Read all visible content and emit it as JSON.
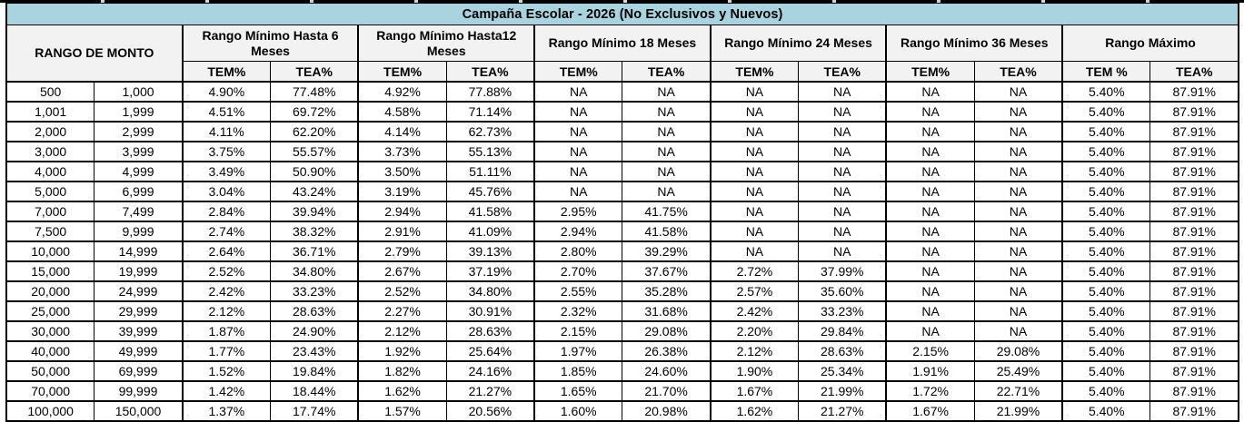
{
  "title": "Campaña Escolar - 2026 (No Exclusivos y Nuevos)",
  "colors": {
    "title_bg": "#a8d3df",
    "header_bg": "#f2f2f2",
    "border": "#000000"
  },
  "table": {
    "col_group_headers": [
      {
        "label": "RANGO DE MONTO"
      },
      {
        "label": "Rango Mínimo Hasta 6 Meses"
      },
      {
        "label": "Rango Mínimo Hasta12 Meses"
      },
      {
        "label": "Rango Mínimo 18 Meses"
      },
      {
        "label": "Rango Mínimo 24 Meses"
      },
      {
        "label": "Rango Mínimo 36 Meses"
      },
      {
        "label": "Rango Máximo"
      }
    ],
    "sub_headers": [
      "TEM%",
      "TEA%",
      "TEM%",
      "TEA%",
      "TEM%",
      "TEA%",
      "TEM%",
      "TEA%",
      "TEM%",
      "TEA%",
      "TEM %",
      "TEA%"
    ],
    "rows": [
      [
        "500",
        "1,000",
        "4.90%",
        "77.48%",
        "4.92%",
        "77.88%",
        "NA",
        "NA",
        "NA",
        "NA",
        "NA",
        "NA",
        "5.40%",
        "87.91%"
      ],
      [
        "1,001",
        "1,999",
        "4.51%",
        "69.72%",
        "4.58%",
        "71.14%",
        "NA",
        "NA",
        "NA",
        "NA",
        "NA",
        "NA",
        "5.40%",
        "87.91%"
      ],
      [
        "2,000",
        "2,999",
        "4.11%",
        "62.20%",
        "4.14%",
        "62.73%",
        "NA",
        "NA",
        "NA",
        "NA",
        "NA",
        "NA",
        "5.40%",
        "87.91%"
      ],
      [
        "3,000",
        "3,999",
        "3.75%",
        "55.57%",
        "3.73%",
        "55.13%",
        "NA",
        "NA",
        "NA",
        "NA",
        "NA",
        "NA",
        "5.40%",
        "87.91%"
      ],
      [
        "4,000",
        "4,999",
        "3.49%",
        "50.90%",
        "3.50%",
        "51.11%",
        "NA",
        "NA",
        "NA",
        "NA",
        "NA",
        "NA",
        "5.40%",
        "87.91%"
      ],
      [
        "5,000",
        "6,999",
        "3.04%",
        "43.24%",
        "3.19%",
        "45.76%",
        "NA",
        "NA",
        "NA",
        "NA",
        "NA",
        "NA",
        "5.40%",
        "87.91%"
      ],
      [
        "7,000",
        "7,499",
        "2.84%",
        "39.94%",
        "2.94%",
        "41.58%",
        "2.95%",
        "41.75%",
        "NA",
        "NA",
        "NA",
        "NA",
        "5.40%",
        "87.91%"
      ],
      [
        "7,500",
        "9,999",
        "2.74%",
        "38.32%",
        "2.91%",
        "41.09%",
        "2.94%",
        "41.58%",
        "NA",
        "NA",
        "NA",
        "NA",
        "5.40%",
        "87.91%"
      ],
      [
        "10,000",
        "14,999",
        "2.64%",
        "36.71%",
        "2.79%",
        "39.13%",
        "2.80%",
        "39.29%",
        "NA",
        "NA",
        "NA",
        "NA",
        "5.40%",
        "87.91%"
      ],
      [
        "15,000",
        "19,999",
        "2.52%",
        "34.80%",
        "2.67%",
        "37.19%",
        "2.70%",
        "37.67%",
        "2.72%",
        "37.99%",
        "NA",
        "NA",
        "5.40%",
        "87.91%"
      ],
      [
        "20,000",
        "24,999",
        "2.42%",
        "33.23%",
        "2.52%",
        "34.80%",
        "2.55%",
        "35.28%",
        "2.57%",
        "35.60%",
        "NA",
        "NA",
        "5.40%",
        "87.91%"
      ],
      [
        "25,000",
        "29,999",
        "2.12%",
        "28.63%",
        "2.27%",
        "30.91%",
        "2.32%",
        "31.68%",
        "2.42%",
        "33.23%",
        "NA",
        "NA",
        "5.40%",
        "87.91%"
      ],
      [
        "30,000",
        "39,999",
        "1.87%",
        "24.90%",
        "2.12%",
        "28.63%",
        "2.15%",
        "29.08%",
        "2.20%",
        "29.84%",
        "NA",
        "NA",
        "5.40%",
        "87.91%"
      ],
      [
        "40,000",
        "49,999",
        "1.77%",
        "23.43%",
        "1.92%",
        "25.64%",
        "1.97%",
        "26.38%",
        "2.12%",
        "28.63%",
        "2.15%",
        "29.08%",
        "5.40%",
        "87.91%"
      ],
      [
        "50,000",
        "69,999",
        "1.52%",
        "19.84%",
        "1.82%",
        "24.16%",
        "1.85%",
        "24.60%",
        "1.90%",
        "25.34%",
        "1.91%",
        "25.49%",
        "5.40%",
        "87.91%"
      ],
      [
        "70,000",
        "99,999",
        "1.42%",
        "18.44%",
        "1.62%",
        "21.27%",
        "1.65%",
        "21.70%",
        "1.67%",
        "21.99%",
        "1.72%",
        "22.71%",
        "5.40%",
        "87.91%"
      ],
      [
        "100,000",
        "150,000",
        "1.37%",
        "17.74%",
        "1.57%",
        "20.56%",
        "1.60%",
        "20.98%",
        "1.62%",
        "21.27%",
        "1.67%",
        "21.99%",
        "5.40%",
        "87.91%"
      ]
    ]
  }
}
